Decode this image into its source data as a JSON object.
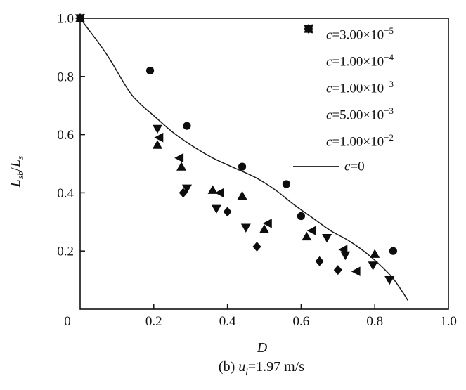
{
  "figure": {
    "caption": {
      "prefix": "(b) ",
      "var": "u",
      "sub": "l",
      "rest": "=1.97 m/s"
    },
    "x_axis": {
      "label": "D"
    },
    "y_axis": {
      "label_parts": {
        "l1": "L",
        "sub1": "sb",
        "slash": "/",
        "l2": "L",
        "sub2": "s"
      }
    }
  },
  "legend": {
    "items": [
      {
        "c": "c",
        "eq": "=3.00×10",
        "sup": "−5"
      },
      {
        "c": "c",
        "eq": "=1.00×10",
        "sup": "−4"
      },
      {
        "c": "c",
        "eq": "=1.00×10",
        "sup": "−3"
      },
      {
        "c": "c",
        "eq": "=5.00×10",
        "sup": "−3"
      },
      {
        "c": "c",
        "eq": "=1.00×10",
        "sup": "−2"
      },
      {
        "c": "c",
        "eq": "=0",
        "sup": ""
      }
    ]
  },
  "chart_data": {
    "type": "scatter",
    "title": "",
    "xlabel": "D",
    "ylabel": "Lsb/Ls",
    "xlim": [
      0,
      1.0
    ],
    "ylim": [
      0,
      1.0
    ],
    "x_ticks": {
      "values": [
        0,
        0.2,
        0.4,
        0.6,
        0.8,
        1.0
      ],
      "labels": [
        "0",
        "0.2",
        "0.4",
        "0.6",
        "0.8",
        "1.0"
      ]
    },
    "y_ticks": {
      "values": [
        1.0,
        0.8,
        0.6,
        0.4,
        0.2
      ],
      "labels": [
        "1.0",
        "0.8",
        "0.6",
        "0.4",
        "0.2"
      ]
    },
    "grid": false,
    "legend_position": "upper-right-inside",
    "series": [
      {
        "name": "c=3.00×10^-5",
        "marker": "circle",
        "points": [
          [
            0,
            1.0
          ],
          [
            0.19,
            0.82
          ],
          [
            0.29,
            0.63
          ],
          [
            0.44,
            0.49
          ],
          [
            0.56,
            0.43
          ],
          [
            0.6,
            0.32
          ],
          [
            0.85,
            0.2
          ]
        ]
      },
      {
        "name": "c=1.00×10^-4",
        "marker": "triangle-up",
        "points": [
          [
            0,
            1.0
          ],
          [
            0.21,
            0.565
          ],
          [
            0.275,
            0.49
          ],
          [
            0.36,
            0.41
          ],
          [
            0.44,
            0.39
          ],
          [
            0.5,
            0.275
          ],
          [
            0.615,
            0.25
          ],
          [
            0.8,
            0.19
          ]
        ]
      },
      {
        "name": "c=1.00×10^-3",
        "marker": "triangle-down",
        "points": [
          [
            0,
            1.0
          ],
          [
            0.21,
            0.62
          ],
          [
            0.29,
            0.415
          ],
          [
            0.37,
            0.345
          ],
          [
            0.45,
            0.28
          ],
          [
            0.67,
            0.245
          ],
          [
            0.72,
            0.185
          ],
          [
            0.795,
            0.15
          ],
          [
            0.84,
            0.1
          ]
        ]
      },
      {
        "name": "c=5.00×10^-3",
        "marker": "diamond",
        "points": [
          [
            0,
            1.0
          ],
          [
            0.28,
            0.4
          ],
          [
            0.4,
            0.335
          ],
          [
            0.48,
            0.215
          ],
          [
            0.65,
            0.165
          ],
          [
            0.7,
            0.135
          ]
        ]
      },
      {
        "name": "c=1.00×10^-2",
        "marker": "triangle-left",
        "points": [
          [
            0,
            1.0
          ],
          [
            0.215,
            0.59
          ],
          [
            0.27,
            0.52
          ],
          [
            0.38,
            0.4
          ],
          [
            0.51,
            0.295
          ],
          [
            0.63,
            0.27
          ],
          [
            0.715,
            0.205
          ],
          [
            0.75,
            0.13
          ]
        ]
      }
    ],
    "line_series": {
      "name": "c=0",
      "points": [
        [
          0,
          1.0
        ],
        [
          0.07,
          0.88
        ],
        [
          0.13,
          0.755
        ],
        [
          0.16,
          0.71
        ],
        [
          0.2,
          0.665
        ],
        [
          0.25,
          0.61
        ],
        [
          0.3,
          0.565
        ],
        [
          0.36,
          0.52
        ],
        [
          0.42,
          0.485
        ],
        [
          0.48,
          0.45
        ],
        [
          0.53,
          0.41
        ],
        [
          0.58,
          0.36
        ],
        [
          0.63,
          0.315
        ],
        [
          0.68,
          0.27
        ],
        [
          0.73,
          0.235
        ],
        [
          0.78,
          0.19
        ],
        [
          0.82,
          0.145
        ],
        [
          0.85,
          0.105
        ],
        [
          0.875,
          0.06
        ],
        [
          0.89,
          0.03
        ]
      ]
    }
  }
}
